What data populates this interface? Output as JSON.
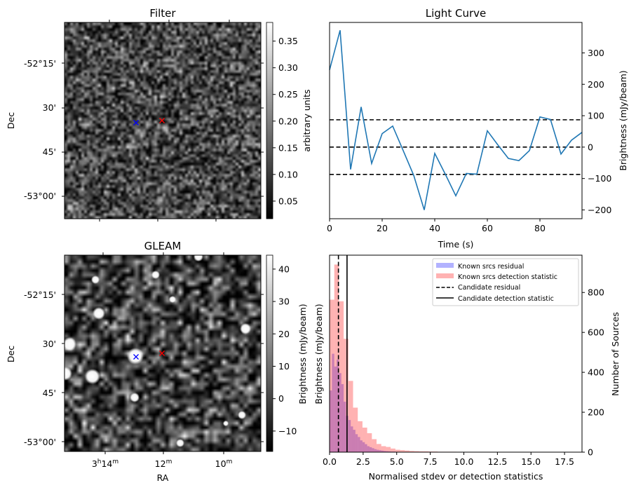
{
  "chart_data": [
    {
      "type": "heatmap",
      "title": "Filter",
      "ylabel": "Dec",
      "colorbar_label": "arbitrary units",
      "colorbar_ticks": [
        "0.05",
        "0.10",
        "0.15",
        "0.20",
        "0.25",
        "0.30",
        "0.35"
      ],
      "colorbar_range": [
        0.017,
        0.385
      ],
      "dec_ticks": [
        "-52°15'",
        "30'",
        "45'",
        "-53°00'"
      ],
      "markers": [
        {
          "color": "#0000ff",
          "symbol": "x"
        },
        {
          "color": "#ff0000",
          "symbol": "x"
        }
      ],
      "colormap": "gray"
    },
    {
      "type": "line",
      "title": "Light Curve",
      "xlabel": "Time (s)",
      "ylabel": "Brightness (mJy/beam)",
      "xlim": [
        0,
        96
      ],
      "ylim": [
        -228,
        397
      ],
      "xticks": [
        0,
        20,
        40,
        60,
        80
      ],
      "yticks": [
        -200,
        -100,
        0,
        100,
        200,
        300
      ],
      "color": "#1f77b4",
      "x": [
        0,
        4,
        8,
        12,
        16,
        20,
        24,
        28,
        32,
        36,
        40,
        44,
        48,
        52,
        56,
        60,
        64,
        68,
        72,
        76,
        80,
        84,
        88,
        92,
        96
      ],
      "y": [
        246,
        372,
        -71,
        128,
        -52,
        43,
        67,
        -11,
        -90,
        -200,
        -20,
        -86,
        -155,
        -84,
        -86,
        52,
        7,
        -36,
        -43,
        -11,
        96,
        88,
        -22,
        22,
        47
      ],
      "hlines": [
        {
          "y": 87,
          "style": "dashed"
        },
        {
          "y": 0,
          "style": "dashed"
        },
        {
          "y": -87,
          "style": "dashed"
        }
      ]
    },
    {
      "type": "heatmap",
      "title": "GLEAM",
      "xlabel": "RA",
      "ylabel": "Dec",
      "colorbar_label": "Brightness (mJy/beam)",
      "colorbar_ticks": [
        "−10",
        "0",
        "10",
        "20",
        "30",
        "40"
      ],
      "colorbar_range": [
        -16.3,
        44.3
      ],
      "dec_ticks": [
        "-52°15'",
        "30'",
        "45'",
        "-53°00'"
      ],
      "ra_ticks": [
        {
          "h": "3",
          "hs": "h",
          "m": "14",
          "ms": "m"
        },
        {
          "h": "",
          "hs": "",
          "m": "12",
          "ms": "m"
        },
        {
          "h": "",
          "hs": "",
          "m": "10",
          "ms": "m"
        }
      ],
      "markers": [
        {
          "color": "#0000ff",
          "symbol": "x"
        },
        {
          "color": "#ff0000",
          "symbol": "x"
        }
      ],
      "colormap": "gray"
    },
    {
      "type": "bar",
      "subtype": "histogram",
      "xlabel": "Normalised stdev or detection statistics",
      "ylabel_left": "Brightness (mJy/beam)",
      "ylabel_right": "Number of Sources",
      "xlim": [
        0,
        18.8
      ],
      "ylim": [
        0,
        987
      ],
      "xticks": [
        "0.0",
        "2.5",
        "5.0",
        "7.5",
        "10.0",
        "12.5",
        "15.0",
        "17.5"
      ],
      "xtick_values": [
        0,
        2.5,
        5,
        7.5,
        10,
        12.5,
        15,
        17.5
      ],
      "yticks": [
        0,
        200,
        400,
        600,
        800
      ],
      "series": [
        {
          "name": "Known srcs residual",
          "color": "#0000ff",
          "alpha": 0.3,
          "bin_width": 0.175,
          "counts": [
            309,
            493,
            429,
            464,
            396,
            341,
            253,
            182,
            161,
            129,
            112,
            90,
            76,
            59,
            50,
            40,
            30,
            25,
            20,
            15,
            12,
            10,
            8,
            6,
            5,
            4,
            3,
            3,
            2,
            2,
            1,
            1
          ]
        },
        {
          "name": "Known srcs detection statistic",
          "color": "#ff0000",
          "alpha": 0.3,
          "bin_width": 0.35,
          "counts": [
            764,
            940,
            756,
            568,
            357,
            223,
            155,
            123,
            95,
            65,
            41,
            30,
            26,
            18,
            12,
            10,
            8,
            6,
            5,
            4,
            4,
            3,
            3,
            2,
            2,
            2,
            2,
            1,
            1,
            1,
            0,
            1,
            1,
            0,
            1,
            0,
            1,
            0,
            0,
            1,
            0,
            1,
            0,
            0,
            1,
            0,
            0,
            1,
            0,
            1,
            0,
            0
          ]
        }
      ],
      "vlines": [
        {
          "name": "Candidate residual",
          "x": 0.66,
          "style": "dashed"
        },
        {
          "name": "Candidate detection statistic",
          "x": 1.3,
          "style": "solid"
        }
      ],
      "legend": "top-right"
    }
  ]
}
